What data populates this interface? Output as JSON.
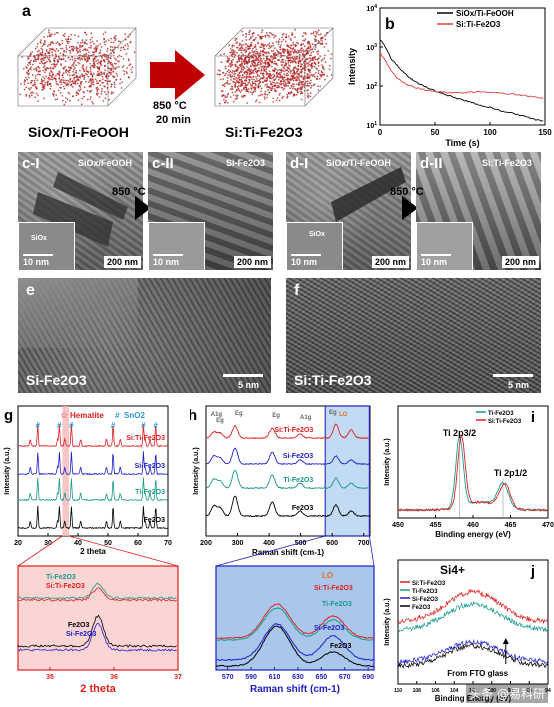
{
  "panel_a": {
    "label": "a",
    "left_label": "SiOx/Ti-FeOOH",
    "right_label": "Si:Ti-Fe2O3",
    "condition_temp": "850 °C",
    "condition_time": "20 min",
    "colors": {
      "dots": "#b22222",
      "arrow": "#c00000"
    }
  },
  "panel_b": {
    "label": "b",
    "chart_data": {
      "type": "line",
      "xlabel": "Time (s)",
      "ylabel": "Intensity",
      "xlim": [
        0,
        150
      ],
      "ylim_log": [
        1,
        4
      ],
      "x_ticks": [
        "0",
        "50",
        "100",
        "150"
      ],
      "y_ticks": [
        "10^1",
        "10^2",
        "10^3",
        "10^4"
      ],
      "legend_position": "top-right",
      "series": [
        {
          "name": "SiOx/Ti-FeOOH",
          "color": "#000000",
          "x": [
            0,
            5,
            10,
            15,
            20,
            25,
            30,
            40,
            50,
            60,
            70,
            80,
            90,
            100,
            110,
            120,
            130,
            140,
            150
          ],
          "y": [
            1600,
            1000,
            500,
            350,
            250,
            180,
            140,
            100,
            75,
            60,
            48,
            40,
            33,
            28,
            23,
            20,
            17,
            14,
            12
          ]
        },
        {
          "name": "Si:Ti-Fe2O3",
          "color": "#e04040",
          "x": [
            0,
            5,
            10,
            15,
            20,
            25,
            30,
            40,
            50,
            60,
            70,
            80,
            90,
            100,
            110,
            120,
            130,
            140,
            150
          ],
          "y": [
            700,
            450,
            250,
            170,
            130,
            110,
            95,
            80,
            72,
            68,
            66,
            68,
            72,
            70,
            66,
            62,
            58,
            52,
            48
          ]
        }
      ]
    }
  },
  "panel_c": {
    "label_1": "c-I",
    "title_1": "SiOx/FeOOH",
    "label_2": "c-II",
    "title_2": "Si-Fe2O3",
    "temp": "850 °C",
    "inset_tag": "SiOx",
    "scale_inset": "10 nm",
    "scale_main": "200 nm"
  },
  "panel_d": {
    "label_1": "d-I",
    "title_1": "SiOx/Ti-FeOOH",
    "label_2": "d-II",
    "title_2": "Si:Ti-Fe2O3",
    "temp": "850 °C",
    "inset_tag": "SiOx",
    "scale_inset": "10 nm",
    "scale_main": "200 nm"
  },
  "panel_e": {
    "label": "e",
    "caption": "Si-Fe2O3",
    "scale": "5 nm"
  },
  "panel_f": {
    "label": "f",
    "caption": "Si:Ti-Fe2O3",
    "scale": "5 nm"
  },
  "panel_g": {
    "label": "g",
    "legend_hematite": "Hematite",
    "legend_sno2": "SnO2",
    "xlabel": "2 theta",
    "ylabel": "Intensity (a.u.)",
    "x_ticks": [
      "20",
      "30",
      "40",
      "50",
      "60",
      "70"
    ],
    "series_labels": [
      "Si:Ti-Fe2O3",
      "Si-Fe2O3",
      "Ti-Fe2O3",
      "Fe2O3"
    ],
    "colors": [
      "#e02020",
      "#2020d0",
      "#1a9a8a",
      "#000000"
    ],
    "chart_data": {
      "type": "line",
      "xlim": [
        20,
        70
      ],
      "peaks_sno2": [
        26.6,
        33.8,
        37.8,
        51.7,
        61.8,
        65.9
      ],
      "peaks_hematite": [
        24.1,
        33.2,
        35.6,
        40.9,
        49.5,
        54.1,
        62.4,
        64.0
      ]
    }
  },
  "panel_g_zoom": {
    "xlabel": "2 theta",
    "x_ticks": [
      "35",
      "36",
      "37"
    ],
    "labels_top": [
      "Ti-Fe2O3",
      "Si:Ti-Fe2O3"
    ],
    "labels_bottom": [
      "Fe2O3",
      "Si-Fe2O3"
    ],
    "chart_data": {
      "type": "line",
      "xlim": [
        34.5,
        37
      ],
      "peak_center": 35.75
    }
  },
  "panel_h": {
    "label": "h",
    "xlabel": "Raman shift (cm-1)",
    "ylabel": "Intensity (a.u.)",
    "x_ticks": [
      "200",
      "300",
      "400",
      "500",
      "600",
      "700"
    ],
    "mode_labels": [
      "A1g",
      "Eg",
      "Eg",
      "Eg",
      "A1g",
      "Eg",
      "LO"
    ],
    "series_labels": [
      "Si:Ti-Fe2O3",
      "Si-Fe2O3",
      "Ti-Fe2O3",
      "Fe2O3"
    ],
    "chart_data": {
      "type": "line",
      "xlim": [
        200,
        720
      ],
      "peaks": [
        225,
        245,
        292,
        410,
        498,
        612,
        660
      ]
    }
  },
  "panel_h_zoom": {
    "xlabel": "Raman shift (cm-1)",
    "x_ticks": [
      "570",
      "590",
      "610",
      "630",
      "650",
      "670",
      "690"
    ],
    "label_lo": "LO",
    "labels": [
      "Si:Ti-Fe2O3",
      "Ti-Fe2O3",
      "Si-Fe2O3",
      "Fe2O3"
    ],
    "chart_data": {
      "type": "line",
      "xlim": [
        560,
        695
      ],
      "peaks": [
        612,
        660
      ]
    }
  },
  "panel_i": {
    "label": "i",
    "xlabel": "Binding energy (eV)",
    "ylabel": "Intensity (a.u.)",
    "x_ticks": [
      "450",
      "455",
      "460",
      "465",
      "470"
    ],
    "legend": [
      "Ti-Fe2O3",
      "Si:Ti-Fe2O3"
    ],
    "peak_32": "Ti 2p3/2",
    "peak_12": "Ti 2p1/2",
    "chart_data": {
      "type": "line",
      "xlim": [
        450,
        470
      ],
      "peaks": [
        458.2,
        464.0
      ]
    }
  },
  "panel_j": {
    "label": "j",
    "title": "Si4+",
    "xlabel": "Binding Energy (eV)",
    "ylabel": "Intensity (a.u.)",
    "x_ticks": [
      "110",
      "108",
      "106",
      "104",
      "102",
      "100",
      "98",
      "96",
      "94"
    ],
    "legend": [
      "Si:Ti-Fe2O3",
      "Ti-Fe2O3",
      "Si-Fe2O3",
      "Fe2O3"
    ],
    "annotation": "From FTO glass",
    "chart_data": {
      "type": "line",
      "xlim": [
        110,
        94
      ],
      "peak": 102
    }
  },
  "watermark": "头条 @易科研"
}
